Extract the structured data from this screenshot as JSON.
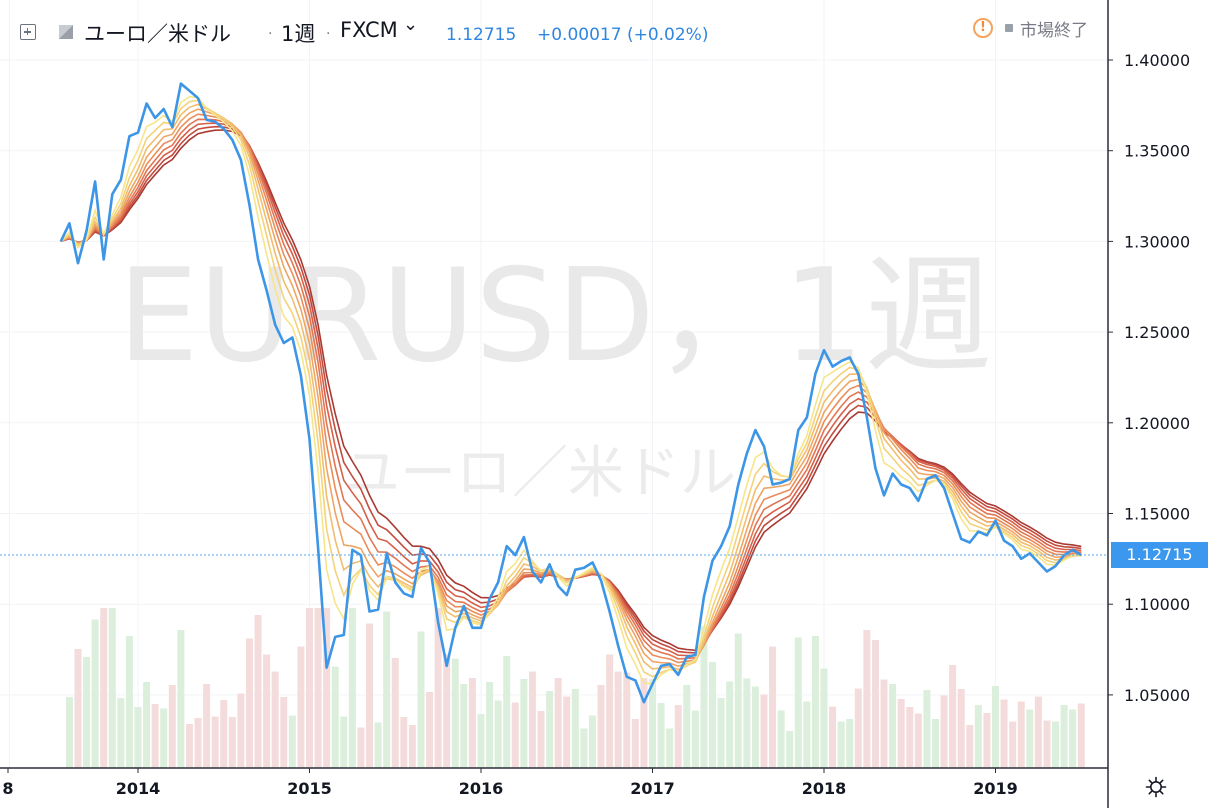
{
  "header": {
    "symbol_name": "ユーロ／米ドル",
    "separator": "·",
    "interval": "1週",
    "exchange": "FXCM",
    "dropdown_glyph": "⌄",
    "last_price": "1.12715",
    "change": "+0.00017 (+0.02%)",
    "status_glyph": "!",
    "market_status": "市場終了"
  },
  "watermark": {
    "line1": "EURUSD，1週",
    "line2": "ユーロ／米ドル"
  },
  "colors": {
    "price_line": "#3d95e6",
    "ribbon": [
      "#f6e58a",
      "#f4d27a",
      "#f1bd6e",
      "#eea564",
      "#e98d5a",
      "#e27652",
      "#d6604a",
      "#c24b3e",
      "#a83a32"
    ],
    "volume_up": "#dcefdc",
    "volume_down": "#f4dcdc",
    "price_tag": "#3b98ee"
  },
  "chart_data": {
    "type": "line",
    "title": "",
    "xlabel": "",
    "ylabel": "",
    "x_axis_labels": [
      "8",
      "2014",
      "2015",
      "2016",
      "2017",
      "2018",
      "2019"
    ],
    "y_ticks": [
      "1.40000",
      "1.35000",
      "1.30000",
      "1.25000",
      "1.20000",
      "1.15000",
      "1.10000",
      "1.05000"
    ],
    "ylim": [
      1.017,
      1.42
    ],
    "current_price_label": "1.12715",
    "current_price": 1.12715,
    "grid": true,
    "series": [
      {
        "x": [
          2013.55,
          2013.6,
          2013.65,
          2013.7,
          2013.75,
          2013.8,
          2013.85,
          2013.9,
          2013.95,
          2014.0,
          2014.05,
          2014.1,
          2014.15,
          2014.2,
          2014.25,
          2014.3,
          2014.35,
          2014.4,
          2014.45,
          2014.5,
          2014.55,
          2014.6,
          2014.65,
          2014.7,
          2014.75,
          2014.8,
          2014.85,
          2014.9,
          2014.95,
          2015.0,
          2015.05,
          2015.1,
          2015.15,
          2015.2,
          2015.25,
          2015.3,
          2015.35,
          2015.4,
          2015.45,
          2015.5,
          2015.55,
          2015.6,
          2015.65,
          2015.7,
          2015.75,
          2015.8,
          2015.85,
          2015.9,
          2015.95,
          2016.0,
          2016.05,
          2016.1,
          2016.15,
          2016.2,
          2016.25,
          2016.3,
          2016.35,
          2016.4,
          2016.45,
          2016.5,
          2016.55,
          2016.6,
          2016.65,
          2016.7,
          2016.75,
          2016.8,
          2016.85,
          2016.9,
          2016.95,
          2017.0,
          2017.05,
          2017.1,
          2017.15,
          2017.2,
          2017.25,
          2017.3,
          2017.35,
          2017.4,
          2017.45,
          2017.5,
          2017.55,
          2017.6,
          2017.65,
          2017.7,
          2017.75,
          2017.8,
          2017.85,
          2017.9,
          2017.95,
          2018.0,
          2018.05,
          2018.1,
          2018.15,
          2018.2,
          2018.25,
          2018.3,
          2018.35,
          2018.4,
          2018.45,
          2018.5,
          2018.55,
          2018.6,
          2018.65,
          2018.7,
          2018.75,
          2018.8,
          2018.85,
          2018.9,
          2018.95,
          2019.0,
          2019.05,
          2019.1,
          2019.15,
          2019.2,
          2019.25,
          2019.3,
          2019.35,
          2019.4,
          2019.45,
          2019.5
        ],
        "values": [
          1.3,
          1.31,
          1.288,
          1.306,
          1.333,
          1.29,
          1.326,
          1.334,
          1.358,
          1.36,
          1.376,
          1.368,
          1.373,
          1.363,
          1.387,
          1.383,
          1.379,
          1.367,
          1.366,
          1.362,
          1.356,
          1.345,
          1.32,
          1.29,
          1.273,
          1.254,
          1.244,
          1.247,
          1.226,
          1.191,
          1.131,
          1.065,
          1.082,
          1.083,
          1.13,
          1.127,
          1.096,
          1.097,
          1.128,
          1.112,
          1.106,
          1.104,
          1.131,
          1.123,
          1.09,
          1.066,
          1.087,
          1.099,
          1.087,
          1.087,
          1.103,
          1.112,
          1.132,
          1.127,
          1.137,
          1.118,
          1.112,
          1.122,
          1.11,
          1.105,
          1.119,
          1.12,
          1.123,
          1.113,
          1.096,
          1.077,
          1.06,
          1.058,
          1.046,
          1.056,
          1.066,
          1.067,
          1.061,
          1.071,
          1.072,
          1.104,
          1.124,
          1.132,
          1.143,
          1.166,
          1.183,
          1.196,
          1.187,
          1.166,
          1.167,
          1.169,
          1.196,
          1.203,
          1.227,
          1.24,
          1.231,
          1.234,
          1.236,
          1.227,
          1.203,
          1.175,
          1.16,
          1.172,
          1.166,
          1.164,
          1.157,
          1.169,
          1.171,
          1.164,
          1.15,
          1.136,
          1.134,
          1.14,
          1.138,
          1.146,
          1.135,
          1.132,
          1.125,
          1.128,
          1.123,
          1.118,
          1.121,
          1.127,
          1.13,
          1.127
        ]
      }
    ],
    "ribbon_count": 9
  }
}
